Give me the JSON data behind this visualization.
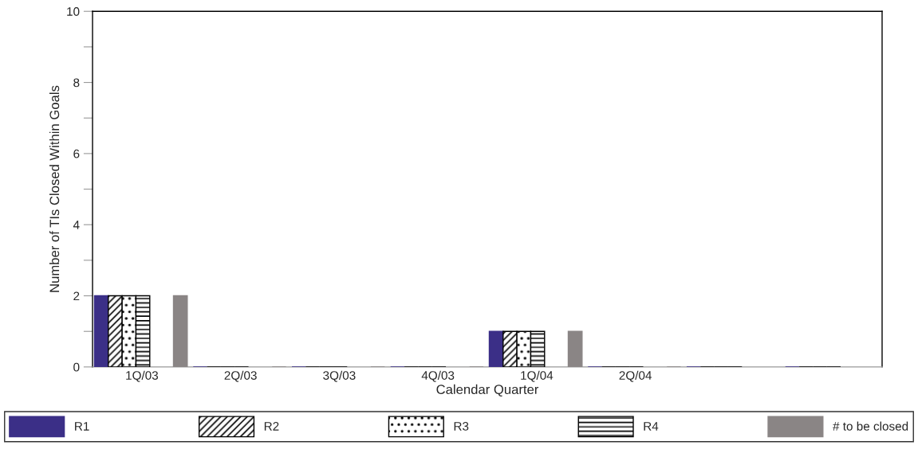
{
  "chart_data": {
    "type": "bar",
    "xlabel": "Calendar Quarter",
    "ylabel": "Number of TIs Closed Within Goals",
    "categories": [
      "1Q/03",
      "2Q/03",
      "3Q/03",
      "4Q/03",
      "1Q/04",
      "2Q/04",
      null,
      null
    ],
    "series": [
      {
        "name": "R1",
        "color": "#3b2f87",
        "values": [
          2,
          0,
          0,
          0,
          1,
          0,
          0,
          0
        ]
      },
      {
        "name": "R2",
        "color": "#000000",
        "values": [
          2,
          0,
          0,
          0,
          1,
          0,
          0,
          0
        ]
      },
      {
        "name": "R3",
        "color": "#000000",
        "values": [
          2,
          0,
          0,
          0,
          1,
          0,
          0,
          0
        ]
      },
      {
        "name": "R4",
        "color": "#000000",
        "values": [
          2,
          0,
          0,
          0,
          1,
          0,
          0,
          0
        ]
      },
      {
        "name": "# to be closed",
        "color": "#8a8585",
        "values": [
          2,
          0,
          0,
          0,
          1,
          0,
          null,
          null
        ]
      }
    ],
    "ylim": [
      0,
      10
    ],
    "yticks": [
      0,
      {
        "value": 1,
        "label": null
      },
      2,
      {
        "value": 3,
        "label": null
      },
      4,
      {
        "value": 5,
        "label": null
      },
      6,
      {
        "value": 7,
        "label": null
      },
      8,
      {
        "value": 9,
        "label": null
      },
      10
    ],
    "grid": false,
    "legend": "bottom"
  }
}
